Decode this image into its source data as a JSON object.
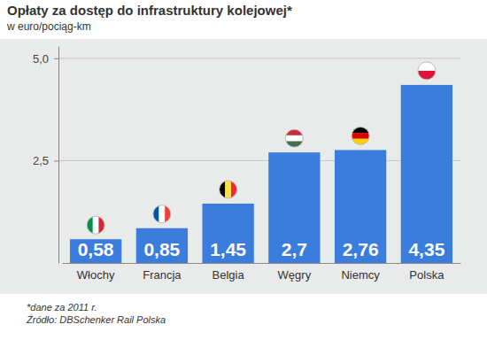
{
  "chart_data": {
    "type": "bar",
    "title": "Opłaty za dostęp do infrastruktury kolejowej*",
    "subtitle": "w euro/pociąg-km",
    "categories": [
      "Włochy",
      "Francja",
      "Belgia",
      "Węgry",
      "Niemcy",
      "Polska"
    ],
    "values": [
      0.58,
      0.85,
      1.45,
      2.7,
      2.76,
      4.35
    ],
    "value_labels": [
      "0,58",
      "0,85",
      "1,45",
      "2,7",
      "2,76",
      "4,35"
    ],
    "color": "#3b7ddd",
    "ylim": [
      0,
      5.3
    ],
    "yticks": [
      {
        "value": 2.5,
        "label": "2,5"
      },
      {
        "value": 5,
        "label": "5,0"
      }
    ],
    "grid": true,
    "data_labels": true,
    "annotations": [
      "*dane za 2011 r.",
      "Źródło: DBSchenker Rail Polska"
    ]
  }
}
